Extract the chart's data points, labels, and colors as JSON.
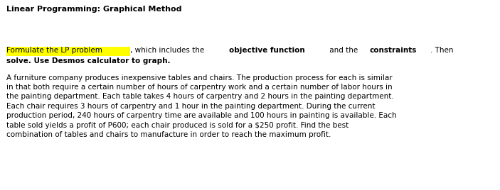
{
  "title": "Linear Programming: Graphical Method",
  "background_color": "#ffffff",
  "highlight_color": "#ffff00",
  "para1_highlighted": "Formulate the LP problem",
  "para1_normal1": ", which includes the ",
  "para1_bold1": "objective function",
  "para1_normal2": " and the ",
  "para1_bold2": "constraints",
  "para1_normal3": ". Then",
  "para1_line2": "solve. Use Desmos calculator to graph.",
  "para2": "A furniture company produces inexpensive tables and chairs. The production process for each is similar\nin that both require a certain number of hours of carpentry work and a certain number of labor hours in\nthe painting department. Each table takes 4 hours of carpentry and 2 hours in the painting department.\nEach chair requires 3 hours of carpentry and 1 hour in the painting department. During the current\nproduction period, 240 hours of carpentry time are available and 100 hours in painting is available. Each\ntable sold yields a profit of P600; each chair produced is sold for a $250 profit. Find the best\ncombination of tables and chairs to manufacture in order to reach the maximum profit.",
  "title_fontsize": 8.0,
  "body_fontsize": 7.5,
  "font_family": "DejaVu Sans"
}
